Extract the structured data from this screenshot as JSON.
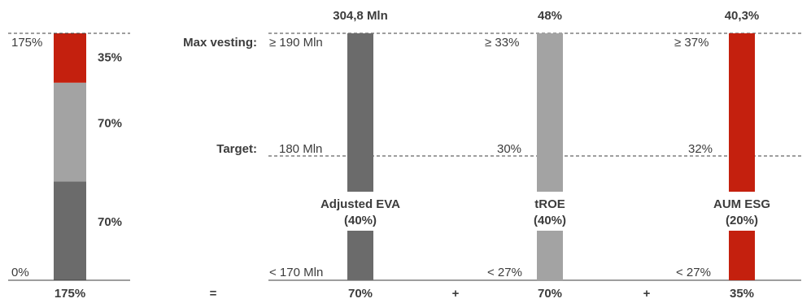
{
  "colors": {
    "dark_grey": "#6b6b6b",
    "mid_grey": "#a3a3a3",
    "red": "#c4200e",
    "text": "#3c3c3c"
  },
  "chart_data": {
    "type": "bar",
    "summary": {
      "total_label": "175%",
      "axis_top_label": "175%",
      "axis_bottom_label": "0%",
      "segments": [
        {
          "value": 70,
          "label": "70%",
          "color": "#6b6b6b"
        },
        {
          "value": 70,
          "label": "70%",
          "color": "#a3a3a3"
        },
        {
          "value": 35,
          "label": "35%",
          "color": "#c4200e"
        }
      ],
      "ylim": [
        0,
        175
      ]
    },
    "row_labels": {
      "max_vesting": "Max vesting:",
      "target": "Target:"
    },
    "operators": [
      "=",
      "+",
      "+"
    ],
    "metrics": [
      {
        "name": "Adjusted EVA",
        "weight": "(40%)",
        "actual": "304,8 Mln",
        "max_vesting": "≥ 190 Mln",
        "target": "180 Mln",
        "min": "< 170 Mln",
        "payout": "70%",
        "color": "#6b6b6b"
      },
      {
        "name": "tROE",
        "weight": "(40%)",
        "actual": "48%",
        "max_vesting": "≥ 33%",
        "target": "30%",
        "min": "< 27%",
        "payout": "70%",
        "color": "#a3a3a3"
      },
      {
        "name": "AUM ESG",
        "weight": "(20%)",
        "actual": "40,3%",
        "max_vesting": "≥ 37%",
        "target": "32%",
        "min": "< 27%",
        "payout": "35%",
        "color": "#c4200e"
      }
    ]
  }
}
